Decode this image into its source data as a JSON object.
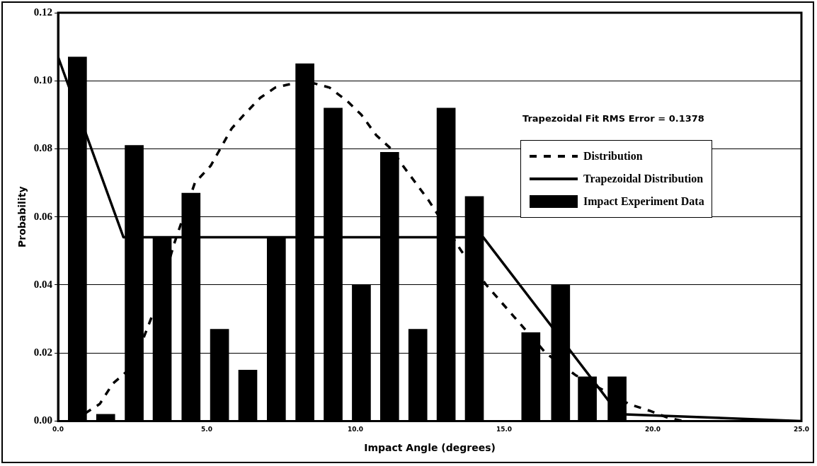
{
  "chart_data": {
    "type": "bar",
    "xlabel": "Impact Angle (degrees)",
    "ylabel": "Probability",
    "x": [
      0.65,
      1.6,
      2.56,
      3.5,
      4.47,
      5.43,
      6.38,
      7.34,
      8.3,
      9.25,
      10.2,
      11.15,
      12.1,
      13.05,
      14.0,
      14.96,
      15.9,
      16.9,
      17.8,
      18.8
    ],
    "series": [
      {
        "name": "Distribution",
        "type": "line",
        "line_style": "dashed",
        "color": "#000000",
        "x": [
          0.5,
          1.4,
          1.84,
          2.5,
          3.3,
          3.9,
          4.6,
          5.13,
          5.84,
          6.25,
          6.8,
          7.3,
          8.3,
          9.13,
          9.73,
          10.2,
          10.7,
          11.2,
          11.6,
          12.45,
          13.56,
          14.4,
          15.4,
          16.4,
          17.4,
          19.2,
          19.9,
          20.5,
          21.0
        ],
        "values": [
          0.0,
          0.005,
          0.011,
          0.016,
          0.034,
          0.052,
          0.07,
          0.075,
          0.086,
          0.09,
          0.095,
          0.098,
          0.1,
          0.098,
          0.094,
          0.09,
          0.084,
          0.08,
          0.075,
          0.065,
          0.05,
          0.04,
          0.03,
          0.02,
          0.0135,
          0.005,
          0.003,
          0.001,
          0.0
        ]
      },
      {
        "name": "Trapezoidal Distribution",
        "type": "line",
        "line_style": "solid",
        "color": "#000000",
        "x": [
          0.0,
          2.2,
          14.3,
          18.6,
          18.9,
          25.0
        ],
        "values": [
          0.107,
          0.054,
          0.054,
          0.005,
          0.002,
          0.0
        ]
      },
      {
        "name": "Impact Experiment Data",
        "color": "#000000",
        "values": [
          0.107,
          0.002,
          0.081,
          0.054,
          0.067,
          0.027,
          0.015,
          0.054,
          0.105,
          0.092,
          0.04,
          0.079,
          0.027,
          0.092,
          0.066,
          0.0,
          0.026,
          0.04,
          0.013,
          0.013
        ]
      }
    ],
    "xlim": [
      0,
      25
    ],
    "xticks": [
      {
        "value": 0,
        "label": "0.0"
      },
      {
        "value": 5,
        "label": "5.0"
      },
      {
        "value": 10,
        "label": "10.0"
      },
      {
        "value": 15,
        "label": "15.0"
      },
      {
        "value": 20,
        "label": "20.0"
      },
      {
        "value": 25,
        "label": "25.0"
      }
    ],
    "ylim": [
      0,
      0.12
    ],
    "yticks": [
      {
        "value": 0,
        "label": "0.00"
      },
      {
        "value": 0.02,
        "label": "0.02"
      },
      {
        "value": 0.04,
        "label": "0.04"
      },
      {
        "value": 0.06,
        "label": "0.06"
      },
      {
        "value": 0.08,
        "label": "0.08"
      },
      {
        "value": 0.1,
        "label": "0.10"
      },
      {
        "value": 0.12,
        "label": "0.12"
      }
    ],
    "grid": "y",
    "legend": "right",
    "marker": "none",
    "annotations": [
      "Trapezoidal Fit RMS Error = 0.1378"
    ]
  }
}
